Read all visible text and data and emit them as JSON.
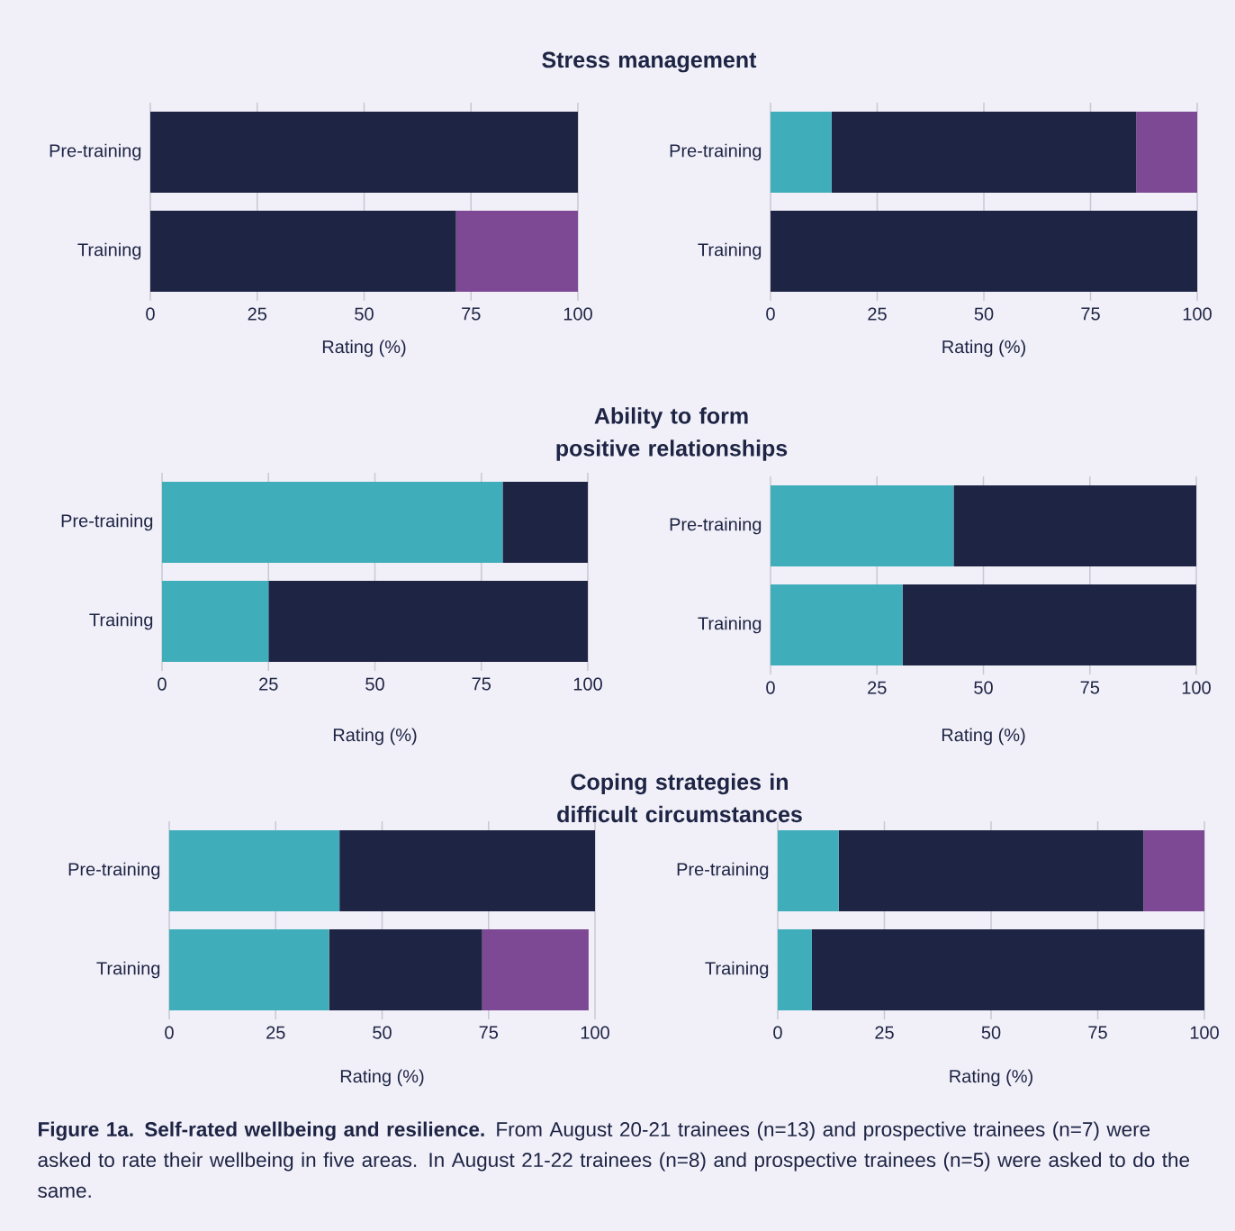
{
  "chart_data": [
    {
      "type": "bar",
      "orientation": "horizontal",
      "stacked": true,
      "title": "Stress management",
      "categories": [
        "Pre-training",
        "Training"
      ],
      "xlim": [
        0,
        100
      ],
      "xticks": [
        0,
        25,
        50,
        75,
        100
      ],
      "xlabel": "Rating (%)",
      "grid": "x",
      "series": [
        {
          "color": "#3fadba",
          "values": [
            0,
            0
          ]
        },
        {
          "color": "#1e2444",
          "values": [
            100,
            71.5
          ]
        },
        {
          "color": "#7d4894",
          "values": [
            0,
            28.5
          ]
        }
      ]
    },
    {
      "type": "bar",
      "orientation": "horizontal",
      "stacked": true,
      "categories": [
        "Pre-training",
        "Training"
      ],
      "xlim": [
        0,
        100
      ],
      "xticks": [
        0,
        25,
        50,
        75,
        100
      ],
      "xlabel": "Rating (%)",
      "grid": "x",
      "series": [
        {
          "color": "#3fadba",
          "values": [
            14.3,
            0
          ]
        },
        {
          "color": "#1e2444",
          "values": [
            71.4,
            100
          ]
        },
        {
          "color": "#7d4894",
          "values": [
            14.3,
            0
          ]
        }
      ]
    },
    {
      "type": "bar",
      "orientation": "horizontal",
      "stacked": true,
      "title": "Ability to form positive relationships",
      "categories": [
        "Pre-training",
        "Training"
      ],
      "xlim": [
        0,
        100
      ],
      "xticks": [
        0,
        25,
        50,
        75,
        100
      ],
      "xlabel": "Rating (%)",
      "grid": "x",
      "series": [
        {
          "color": "#3fadba",
          "values": [
            80,
            25
          ]
        },
        {
          "color": "#1e2444",
          "values": [
            20,
            75
          ]
        }
      ]
    },
    {
      "type": "bar",
      "orientation": "horizontal",
      "stacked": true,
      "categories": [
        "Pre-training",
        "Training"
      ],
      "xlim": [
        0,
        100
      ],
      "xticks": [
        0,
        25,
        50,
        75,
        100
      ],
      "xlabel": "Rating (%)",
      "grid": "x",
      "series": [
        {
          "color": "#3fadba",
          "values": [
            43,
            31
          ]
        },
        {
          "color": "#1e2444",
          "values": [
            57,
            69
          ]
        }
      ]
    },
    {
      "type": "bar",
      "orientation": "horizontal",
      "stacked": true,
      "title": "Coping strategies in difficult circumstances",
      "categories": [
        "Pre-training",
        "Training"
      ],
      "xlim": [
        0,
        100
      ],
      "xticks": [
        0,
        25,
        50,
        75,
        100
      ],
      "xlabel": "Rating (%)",
      "grid": "x",
      "series": [
        {
          "color": "#3fadba",
          "values": [
            40,
            37.5
          ]
        },
        {
          "color": "#1e2444",
          "values": [
            60,
            36
          ]
        },
        {
          "color": "#7d4894",
          "values": [
            0,
            25
          ]
        }
      ]
    },
    {
      "type": "bar",
      "orientation": "horizontal",
      "stacked": true,
      "categories": [
        "Pre-training",
        "Training"
      ],
      "xlim": [
        0,
        100
      ],
      "xticks": [
        0,
        25,
        50,
        75,
        100
      ],
      "xlabel": "Rating (%)",
      "grid": "x",
      "annotations": [
        "**Figure 1a. Self-rated wellbeing and resilience.** From August 20-21 trainees (n=13) and prospective trainees (n=7) were asked to rate their wellbeing in five areas. In August 21-22 trainees (n=8) and prospective trainees (n=5) were asked to do the same."
      ],
      "series": [
        {
          "color": "#3fadba",
          "values": [
            14.3,
            8
          ]
        },
        {
          "color": "#1e2444",
          "values": [
            71.4,
            92
          ]
        },
        {
          "color": "#7d4894",
          "values": [
            14.3,
            0
          ]
        }
      ]
    }
  ]
}
